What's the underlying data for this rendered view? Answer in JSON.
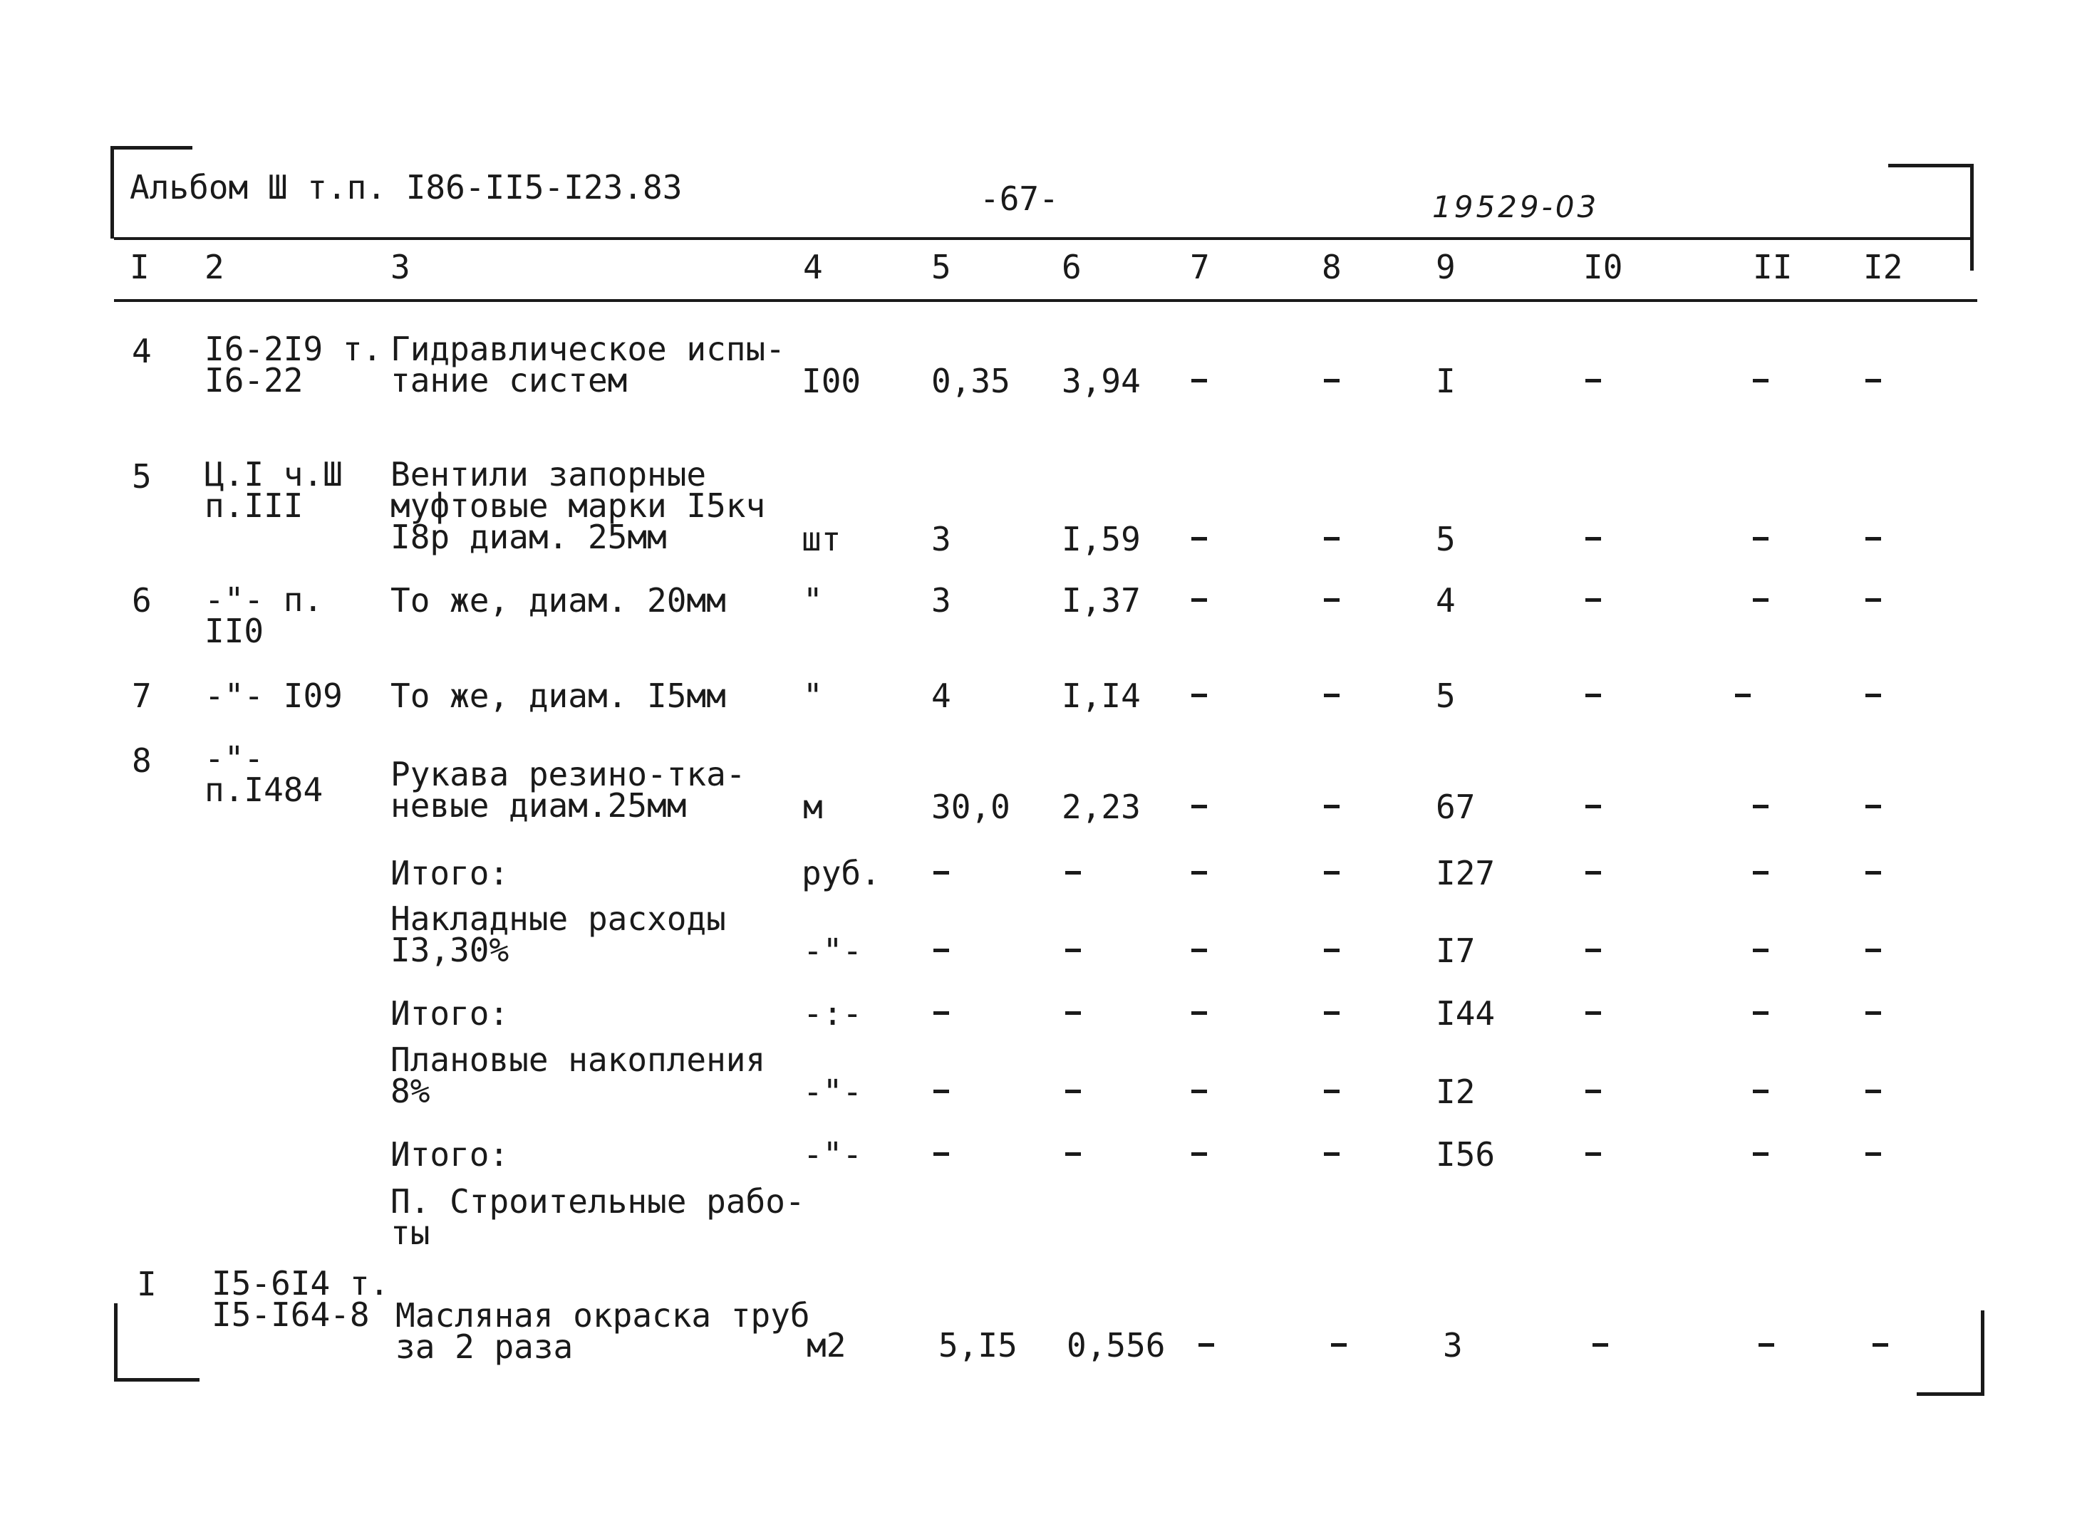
{
  "header": {
    "album": "Альбом Ш т.п. I86-II5-I23.83",
    "page": "-67-",
    "doc_number": "19529-03"
  },
  "columns": [
    "I",
    "2",
    "3",
    "4",
    "5",
    "6",
    "7",
    "8",
    "9",
    "I0",
    "II",
    "I2"
  ],
  "rows": [
    {
      "n": "4",
      "ref": "I6-2I9 т.\nI6-22",
      "desc": "Гидравлическое испы-\nтание систем",
      "unit": "I00",
      "qty": "0,35",
      "price": "3,94",
      "c9": "I"
    },
    {
      "n": "5",
      "ref": "Ц.I ч.Ш\nп.III",
      "desc": "Вентили запорные\nмуфтовые марки I5кч\nI8р диам. 25мм",
      "unit": "шт",
      "qty": "3",
      "price": "I,59",
      "c9": "5"
    },
    {
      "n": "6",
      "ref": "-\"- п.\nII0",
      "desc": "То же, диам. 20мм",
      "unit": "\"",
      "qty": "3",
      "price": "I,37",
      "c9": "4"
    },
    {
      "n": "7",
      "ref": "-\"- I09",
      "desc": "То же, диам. I5мм",
      "unit": "\"",
      "qty": "4",
      "price": "I,I4",
      "c9": "5"
    },
    {
      "n": "8",
      "ref": "-\"-\nп.I484",
      "desc": "Рукава резино-тка-\nневые диам.25мм",
      "unit": "м",
      "qty": "30,0",
      "price": "2,23",
      "c9": "67"
    },
    {
      "desc": "Итого:",
      "unit": "руб.",
      "c9": "I27"
    },
    {
      "desc": "Накладные расходы\nI3,30%",
      "unit": "-\"-",
      "c9": "I7"
    },
    {
      "desc": "Итого:",
      "unit": "-:-",
      "c9": "I44"
    },
    {
      "desc": "Плановые накопления\n8%",
      "unit": "-\"-",
      "c9": "I2"
    },
    {
      "desc": "Итого:",
      "unit": "-\"-",
      "c9": "I56"
    },
    {
      "desc": "П. Строительные рабо-\nты"
    },
    {
      "n": "I",
      "ref": "I5-6I4 т.\nI5-I64-8",
      "desc": "Масляная окраска труб\nза 2 раза",
      "unit": "м2",
      "qty": "5,I5",
      "price": "0,556",
      "c9": "3"
    }
  ]
}
